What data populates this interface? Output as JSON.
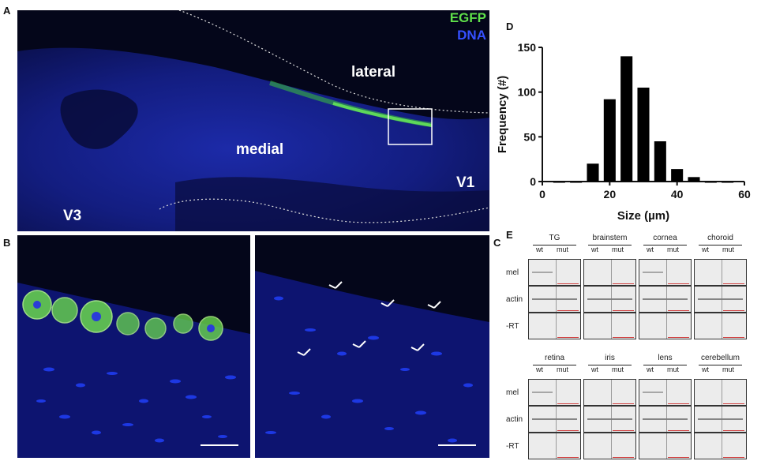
{
  "panel_letters": {
    "a": "A",
    "b": "B",
    "c": "C",
    "d": "D",
    "e": "E"
  },
  "panel_a": {
    "legend_egfp": "EGFP",
    "legend_dna": "DNA",
    "label_lateral": "lateral",
    "label_medial": "medial",
    "label_v1": "V1",
    "label_v3": "V3",
    "colors": {
      "egfp": "#5fe04a",
      "dna": "#2a3cd8",
      "background": "#04061a"
    }
  },
  "chart_data": {
    "type": "bar",
    "xlabel": "Size (µm)",
    "ylabel": "Frequency (#)",
    "xlim": [
      0,
      60
    ],
    "ylim": [
      0,
      150
    ],
    "xticks": [
      0,
      20,
      40,
      60
    ],
    "yticks": [
      0,
      50,
      100,
      150
    ],
    "bin_width": 4,
    "x": [
      5,
      10,
      15,
      20,
      25,
      30,
      35,
      40,
      45,
      50,
      55
    ],
    "values": [
      0,
      0,
      20,
      92,
      140,
      105,
      45,
      14,
      5,
      0,
      0
    ]
  },
  "panel_e": {
    "top_row": [
      {
        "tissue": "TG",
        "wt": "wt",
        "mut": "mut"
      },
      {
        "tissue": "brainstem",
        "wt": "wt",
        "mut": "mut"
      },
      {
        "tissue": "cornea",
        "wt": "wt",
        "mut": "mut"
      },
      {
        "tissue": "choroid",
        "wt": "wt",
        "mut": "mut"
      }
    ],
    "bottom_row": [
      {
        "tissue": "retina",
        "wt": "wt",
        "mut": "mut"
      },
      {
        "tissue": "iris",
        "wt": "wt",
        "mut": "mut"
      },
      {
        "tissue": "lens",
        "wt": "wt",
        "mut": "mut"
      },
      {
        "tissue": "cerebellum",
        "wt": "wt",
        "mut": "mut"
      }
    ],
    "row_labels": [
      "mel",
      "actin",
      "-RT"
    ]
  }
}
